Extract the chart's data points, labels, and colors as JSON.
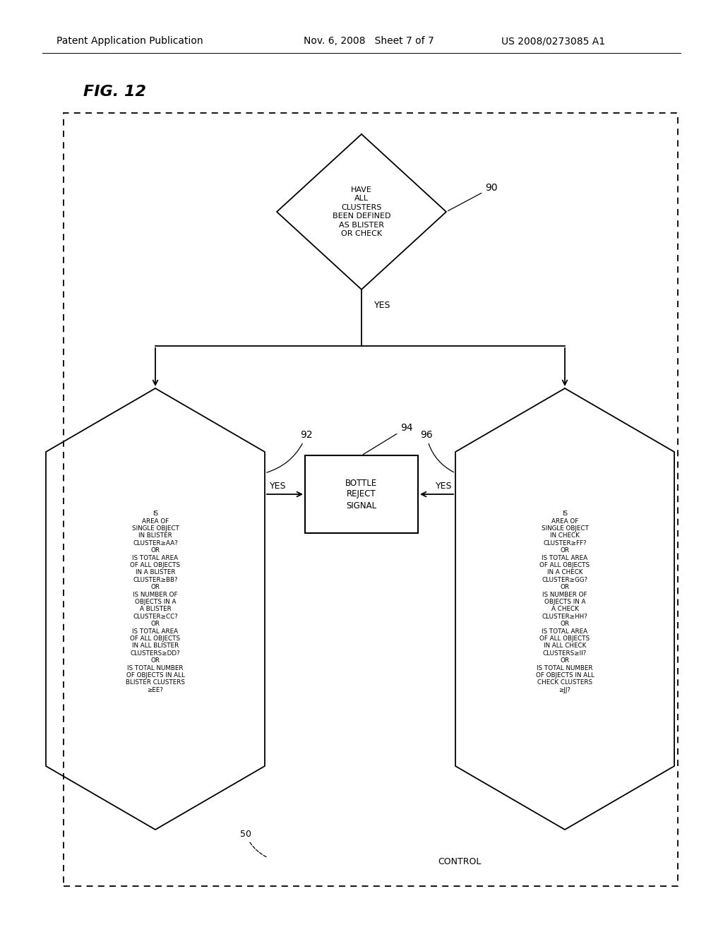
{
  "bg_color": "#ffffff",
  "header_left": "Patent Application Publication",
  "header_mid": "Nov. 6, 2008   Sheet 7 of 7",
  "header_right": "US 2008/0273085 A1",
  "fig_label": "FIG. 12",
  "d90_text": "HAVE\nALL\nCLUSTERS\nBEEN DEFINED\nAS BLISTER\nOR CHECK",
  "d90_label": "90",
  "d92_text": "IS\nAREA OF\nSINGLE OBJECT\nIN BLISTER\nCLUSTER≥AA?\nOR\nIS TOTAL AREA\nOF ALL OBJECTS\nIN A BLISTER\nCLUSTER≥BB?\nOR\nIS NUMBER OF\nOBJECTS IN A\nA BLISTER\nCLUSTER≥CC?\nOR\nIS TOTAL AREA\nOF ALL OBJECTS\nIN ALL BLISTER\nCLUSTERS≥DD?\nOR\nIS TOTAL NUMBER\nOF OBJECTS IN ALL\nBLISTER CLUSTERS\n≥EE?",
  "d92_label": "92",
  "d96_text": "IS\nAREA OF\nSINGLE OBJECT\nIN CHECK\nCLUSTER≥FF?\nOR\nIS TOTAL AREA\nOF ALL OBJECTS\nIN A CHECK\nCLUSTER≥GG?\nOR\nIS NUMBER OF\nOBJECTS IN A\nA CHECK\nCLUSTER≥HH?\nOR\nIS TOTAL AREA\nOF ALL OBJECTS\nIN ALL CHECK\nCLUSTERS≥II?\nOR\nIS TOTAL NUMBER\nOF OBJECTS IN ALL\nCHECK CLUSTERS\n≥JJ?",
  "d96_label": "96",
  "box94_text": "BOTTLE\nREJECT\nSIGNAL",
  "box94_label": "94",
  "yes_text": "YES",
  "control_text": "CONTROL",
  "label_50": "50"
}
